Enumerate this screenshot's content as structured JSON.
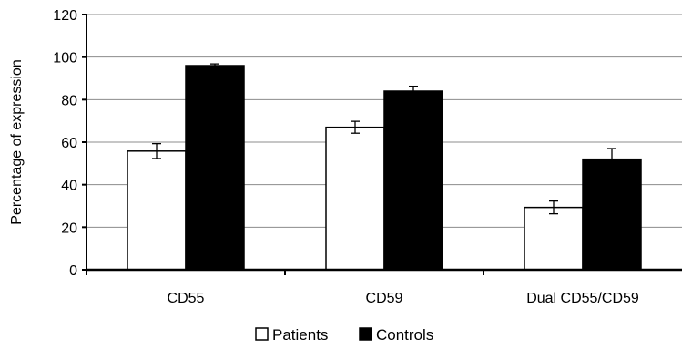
{
  "chart_data": {
    "type": "bar",
    "title": "",
    "xlabel": "",
    "ylabel": "Percentage of expression",
    "ylim": [
      0,
      120
    ],
    "yticks": [
      0,
      20,
      40,
      60,
      80,
      100,
      120
    ],
    "categories": [
      "CD55",
      "CD59",
      "Dual CD55/CD59"
    ],
    "series": [
      {
        "name": "Patients",
        "values": [
          55.8,
          67.0,
          29.3
        ],
        "errors": [
          3.5,
          2.8,
          3.0
        ],
        "color": "#ffffff"
      },
      {
        "name": "Controls",
        "values": [
          96.0,
          84.0,
          52.0
        ],
        "errors": [
          0.8,
          2.3,
          5.0
        ],
        "color": "#000000"
      }
    ],
    "grid": true,
    "legend_position": "bottom"
  }
}
